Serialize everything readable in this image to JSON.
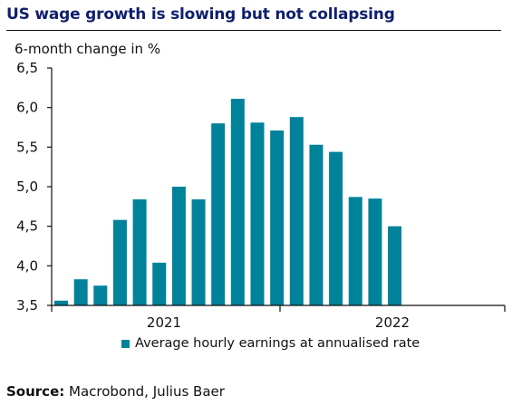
{
  "header": {
    "title": "US wage growth is slowing but not collapsing"
  },
  "source": {
    "label": "Source:",
    "text": "Macrobond, Julius Baer"
  },
  "colors": {
    "bar": "#00829b",
    "title": "#0f1f6e"
  },
  "chart_data": {
    "type": "bar",
    "ylabel": "6-month change in %",
    "ylim": [
      3.5,
      6.5
    ],
    "yticks": [
      "3,5",
      "4,0",
      "4,5",
      "5,0",
      "5,5",
      "6,0",
      "6,5"
    ],
    "ytick_values": [
      3.5,
      4.0,
      4.5,
      5.0,
      5.5,
      6.0,
      6.5
    ],
    "xtick_labels": [
      "2021",
      "2022"
    ],
    "grid": false,
    "legend_position": "bottom",
    "series": [
      {
        "name": "Average hourly earnings at annualised rate",
        "values": [
          3.56,
          3.83,
          3.75,
          4.58,
          4.84,
          4.04,
          5.0,
          4.84,
          5.8,
          6.11,
          5.81,
          5.71,
          5.88,
          5.53,
          5.44,
          4.87,
          4.85,
          4.5
        ]
      }
    ]
  }
}
